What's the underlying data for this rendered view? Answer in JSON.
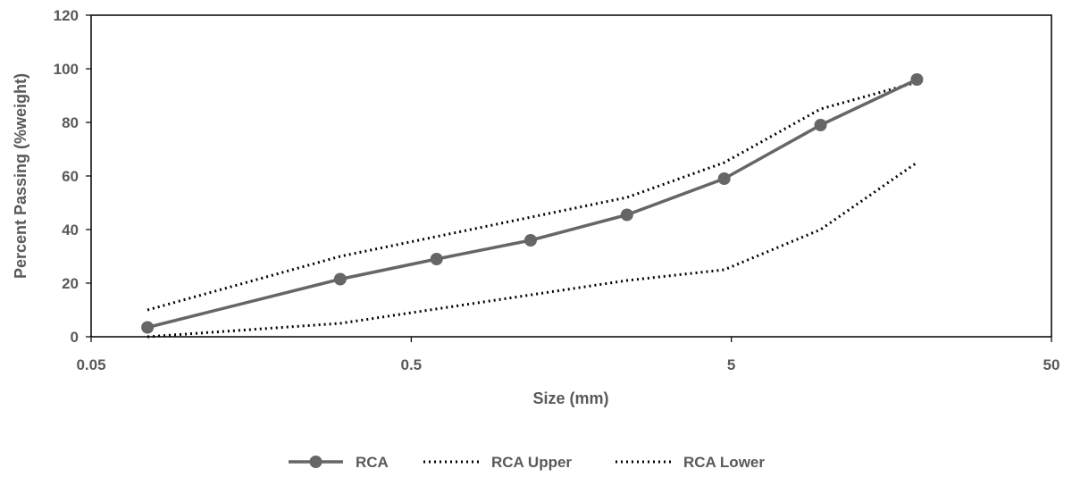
{
  "chart_data": {
    "type": "line",
    "title": "",
    "xlabel": "Size (mm)",
    "ylabel": "Percent Passing (%weight)",
    "x_scale": "log",
    "xlim": [
      0.05,
      50
    ],
    "ylim": [
      0,
      120
    ],
    "x_ticks": [
      "0.05",
      "0.5",
      "5",
      "50"
    ],
    "y_ticks": [
      "0",
      "20",
      "40",
      "60",
      "80",
      "100",
      "120"
    ],
    "grid": false,
    "legend_position": "bottom",
    "series": [
      {
        "name": "RCA",
        "style": "solid-marker",
        "color": "#666666",
        "points": [
          {
            "x": 0.075,
            "y": 3.5
          },
          {
            "x": 0.3,
            "y": 21.5
          },
          {
            "x": 0.6,
            "y": 29
          },
          {
            "x": 1.18,
            "y": 36
          },
          {
            "x": 2.36,
            "y": 45.5
          },
          {
            "x": 4.75,
            "y": 59
          },
          {
            "x": 9.5,
            "y": 79
          },
          {
            "x": 19,
            "y": 96
          }
        ]
      },
      {
        "name": "RCA Upper",
        "style": "dotted",
        "color": "#000000",
        "points": [
          {
            "x": 0.075,
            "y": 10
          },
          {
            "x": 0.3,
            "y": 30
          },
          {
            "x": 2.36,
            "y": 52
          },
          {
            "x": 4.75,
            "y": 65
          },
          {
            "x": 9.5,
            "y": 85
          },
          {
            "x": 19,
            "y": 95
          }
        ]
      },
      {
        "name": "RCA Lower",
        "style": "dotted",
        "color": "#000000",
        "points": [
          {
            "x": 0.075,
            "y": 0
          },
          {
            "x": 0.3,
            "y": 5
          },
          {
            "x": 2.36,
            "y": 21
          },
          {
            "x": 4.75,
            "y": 25
          },
          {
            "x": 9.5,
            "y": 40
          },
          {
            "x": 19,
            "y": 65
          }
        ]
      }
    ]
  }
}
